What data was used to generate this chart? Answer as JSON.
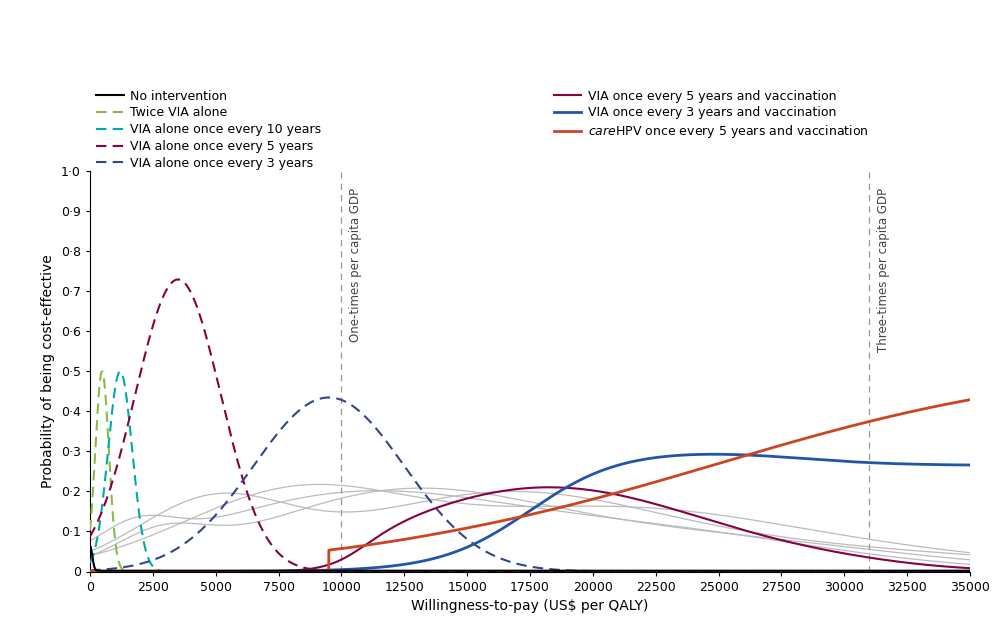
{
  "xlabel": "Willingness-to-pay (US$ per QALY)",
  "ylabel": "Probability of being cost-effective",
  "xlim": [
    0,
    35000
  ],
  "ylim": [
    0,
    1.0
  ],
  "vline1": 10000,
  "vline2": 31000,
  "vline1_label": "One-times per capita GDP",
  "vline2_label": "Three-times per capita GDP",
  "yticks": [
    0,
    0.1,
    0.2,
    0.3,
    0.4,
    0.5,
    0.6,
    0.7,
    0.8,
    0.9,
    1.0
  ],
  "ytick_labels": [
    "0",
    "0·1",
    "0·2",
    "0·3",
    "0·4",
    "0·5",
    "0·6",
    "0·7",
    "0·8",
    "0·9",
    "1·0"
  ],
  "xtick_vals": [
    0,
    2500,
    5000,
    7500,
    10000,
    12500,
    15000,
    17500,
    20000,
    22500,
    25000,
    27500,
    30000,
    32500,
    35000
  ],
  "color_no_int": "#000000",
  "color_twice_via": "#88bb44",
  "color_via10": "#00aaaa",
  "color_via5_dashed": "#880044",
  "color_via3_dashed": "#334488",
  "color_via5_vacc": "#880044",
  "color_via3_vacc": "#2255aa",
  "color_carehpv": "#cc4422",
  "color_gray": "#bbbbbb",
  "figwidth": 10.0,
  "figheight": 6.35,
  "axis_fontsize": 10,
  "tick_fontsize": 9,
  "legend_fontsize": 9
}
